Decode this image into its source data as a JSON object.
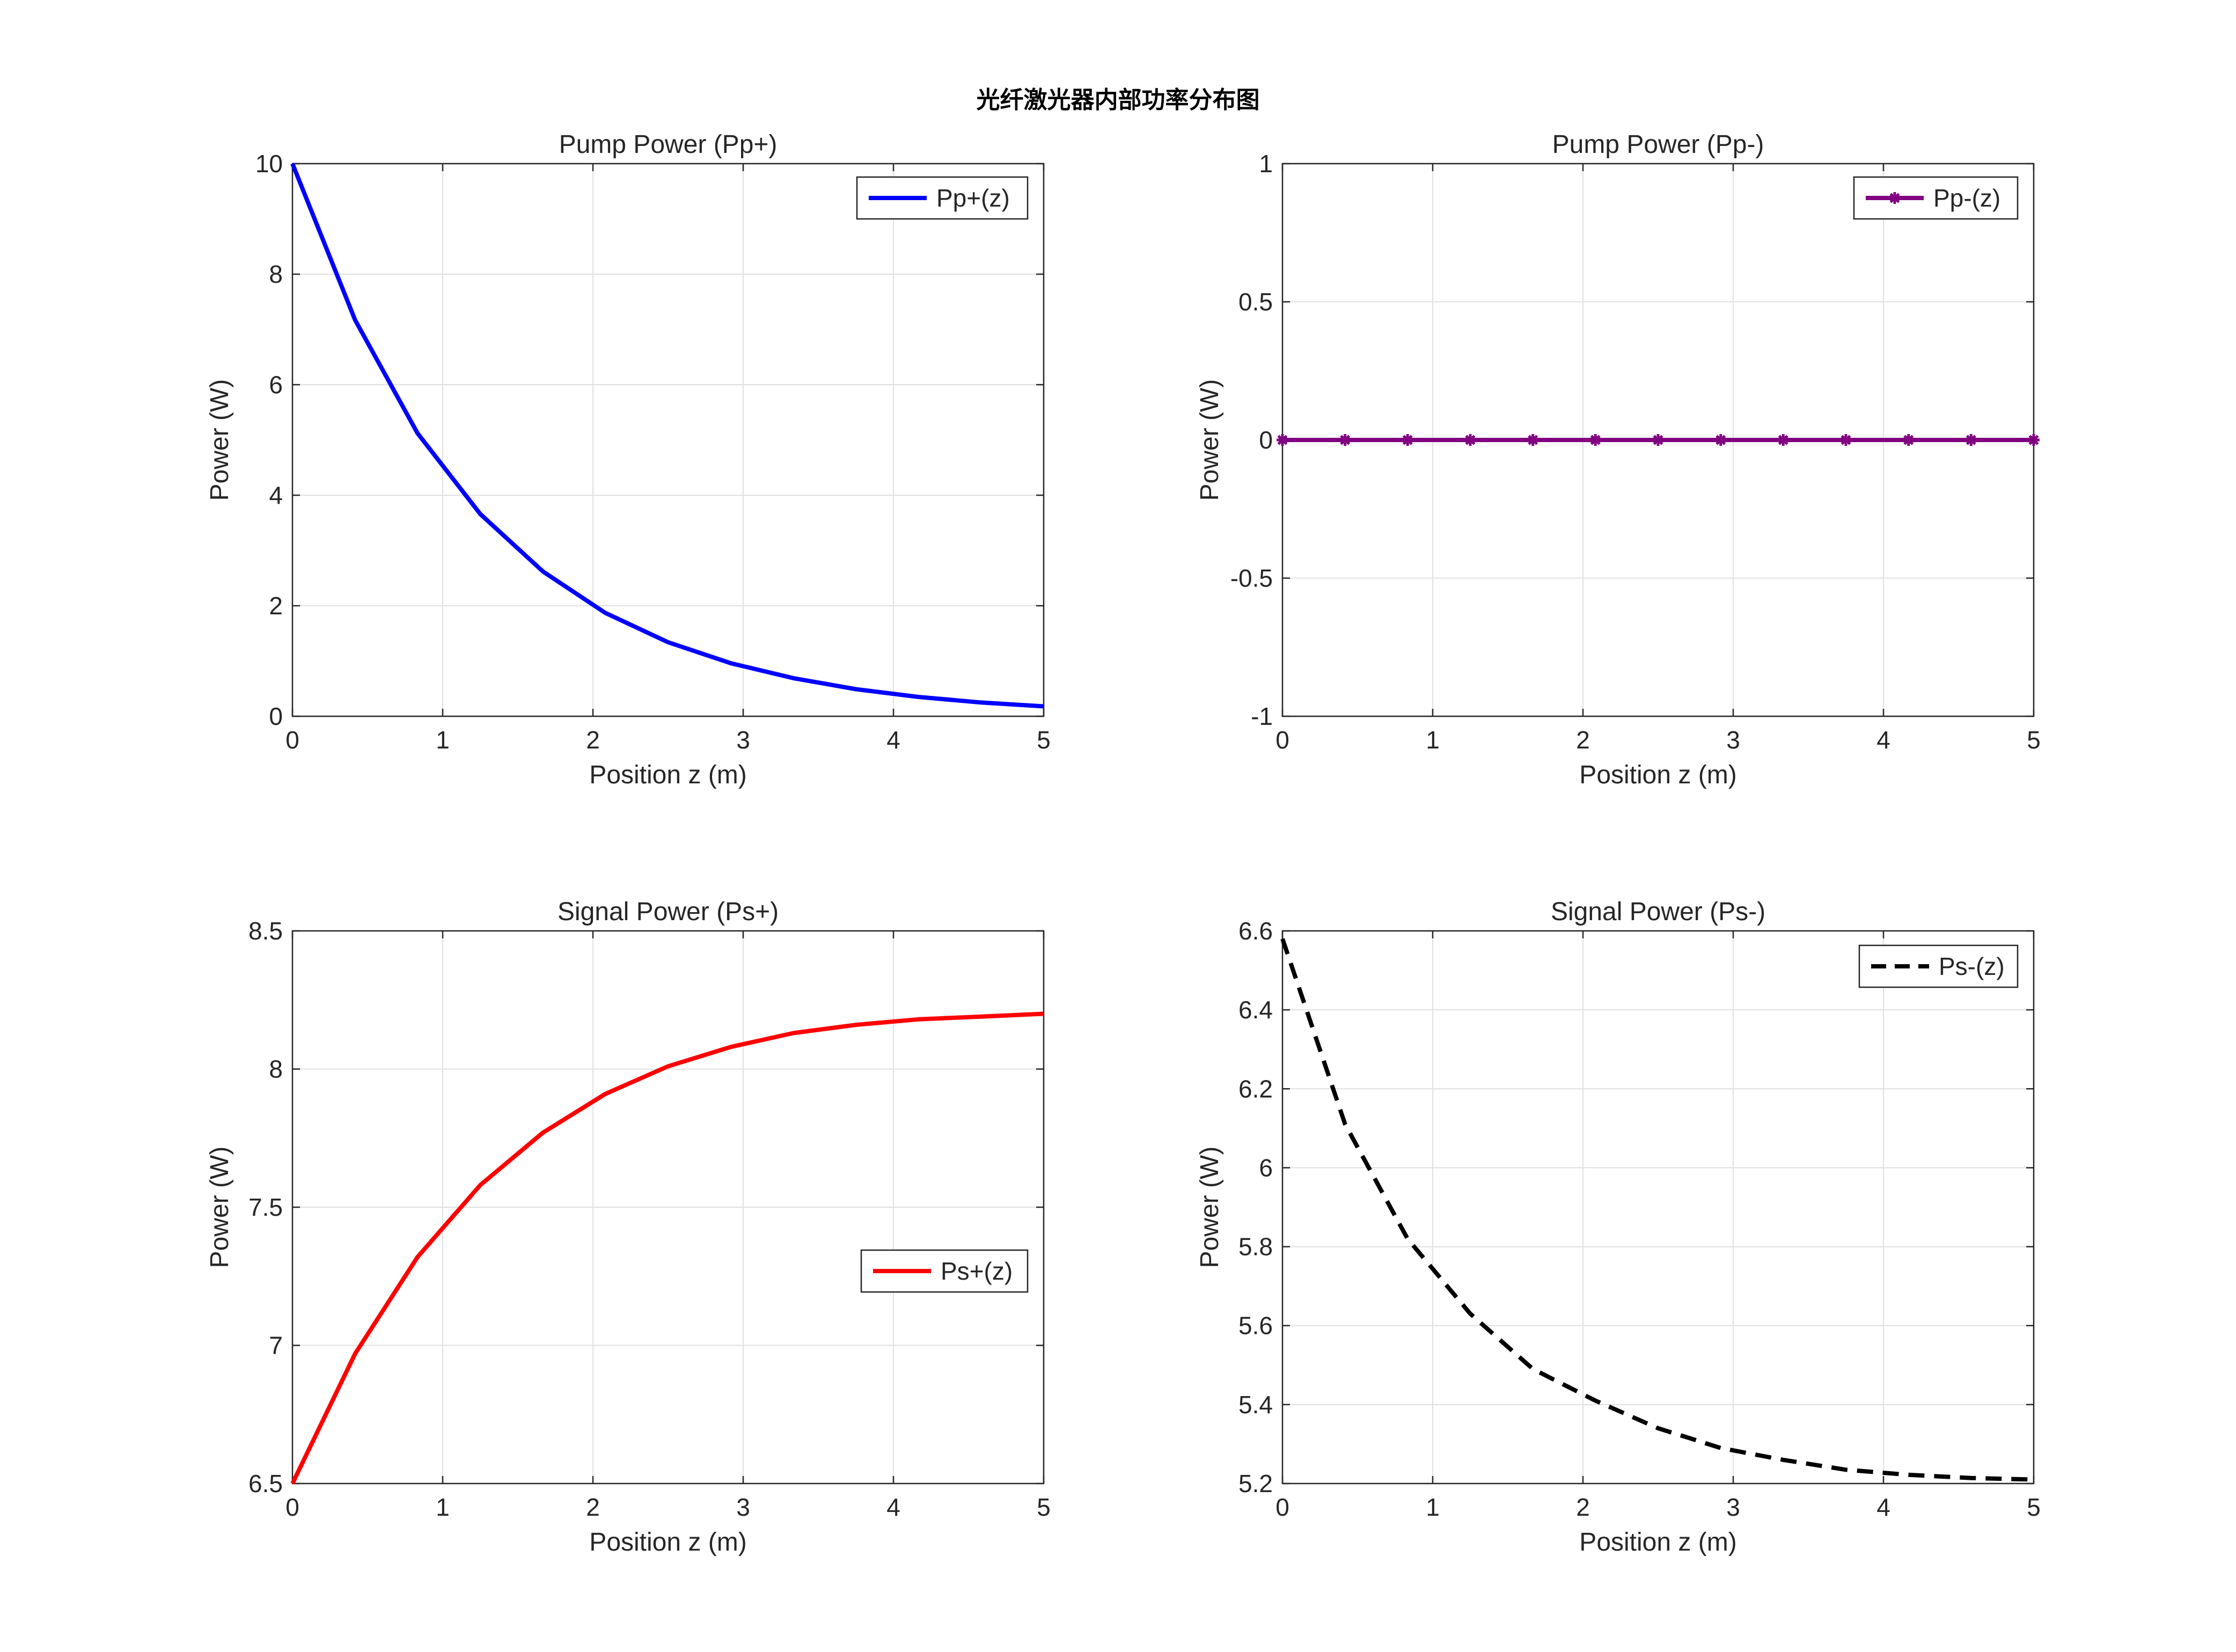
{
  "figure": {
    "title": "光纤激光器内部功率分布图"
  },
  "chart_data": [
    {
      "type": "line",
      "title": "Pump Power (Pp+)",
      "xlabel": "Position z (m)",
      "ylabel": "Power (W)",
      "xlim": [
        0,
        5
      ],
      "ylim": [
        0,
        10
      ],
      "xticks": [
        0,
        1,
        2,
        3,
        4,
        5
      ],
      "xtick_labels": [
        "0",
        "1",
        "2",
        "3",
        "4",
        "5"
      ],
      "yticks": [
        0,
        2,
        4,
        6,
        8,
        10
      ],
      "ytick_labels": [
        "0",
        "2",
        "4",
        "6",
        "8",
        "10"
      ],
      "grid": true,
      "legend_position": "top-right",
      "series": [
        {
          "name": "Pp+(z)",
          "color": "#0000ff",
          "style": "solid",
          "marker": "none",
          "x": [
            0,
            0.417,
            0.833,
            1.25,
            1.667,
            2.083,
            2.5,
            2.917,
            3.333,
            3.75,
            4.167,
            4.583,
            5
          ],
          "y": [
            10.0,
            7.17,
            5.12,
            3.66,
            2.62,
            1.87,
            1.34,
            0.96,
            0.69,
            0.49,
            0.35,
            0.25,
            0.18
          ]
        }
      ]
    },
    {
      "type": "line",
      "title": "Pump Power (Pp-)",
      "xlabel": "Position z (m)",
      "ylabel": "Power (W)",
      "xlim": [
        0,
        5
      ],
      "ylim": [
        -1,
        1
      ],
      "xticks": [
        0,
        1,
        2,
        3,
        4,
        5
      ],
      "xtick_labels": [
        "0",
        "1",
        "2",
        "3",
        "4",
        "5"
      ],
      "yticks": [
        -1,
        -0.5,
        0,
        0.5,
        1
      ],
      "ytick_labels": [
        "-1",
        "-0.5",
        "0",
        "0.5",
        "1"
      ],
      "grid": true,
      "legend_position": "top-right",
      "series": [
        {
          "name": "Pp-(z)",
          "color": "#800080",
          "style": "solid",
          "marker": "asterisk",
          "x": [
            0,
            0.417,
            0.833,
            1.25,
            1.667,
            2.083,
            2.5,
            2.917,
            3.333,
            3.75,
            4.167,
            4.583,
            5
          ],
          "y": [
            0,
            0,
            0,
            0,
            0,
            0,
            0,
            0,
            0,
            0,
            0,
            0,
            0
          ]
        }
      ]
    },
    {
      "type": "line",
      "title": "Signal Power (Ps+)",
      "xlabel": "Position z (m)",
      "ylabel": "Power (W)",
      "xlim": [
        0,
        5
      ],
      "ylim": [
        6.5,
        8.5
      ],
      "xticks": [
        0,
        1,
        2,
        3,
        4,
        5
      ],
      "xtick_labels": [
        "0",
        "1",
        "2",
        "3",
        "4",
        "5"
      ],
      "yticks": [
        6.5,
        7,
        7.5,
        8,
        8.5
      ],
      "ytick_labels": [
        "6.5",
        "7",
        "7.5",
        "8",
        "8.5"
      ],
      "grid": true,
      "legend_position": "center-right",
      "series": [
        {
          "name": "Ps+(z)",
          "color": "#ff0000",
          "style": "solid",
          "marker": "none",
          "x": [
            0,
            0.417,
            0.833,
            1.25,
            1.667,
            2.083,
            2.5,
            2.917,
            3.333,
            3.75,
            4.167,
            4.583,
            5
          ],
          "y": [
            6.5,
            6.97,
            7.32,
            7.58,
            7.77,
            7.91,
            8.01,
            8.08,
            8.13,
            8.16,
            8.18,
            8.19,
            8.2
          ]
        }
      ]
    },
    {
      "type": "line",
      "title": "Signal Power (Ps-)",
      "xlabel": "Position z (m)",
      "ylabel": "Power (W)",
      "xlim": [
        0,
        5
      ],
      "ylim": [
        5.2,
        6.6
      ],
      "xticks": [
        0,
        1,
        2,
        3,
        4,
        5
      ],
      "xtick_labels": [
        "0",
        "1",
        "2",
        "3",
        "4",
        "5"
      ],
      "yticks": [
        5.2,
        5.4,
        5.6,
        5.8,
        6,
        6.2,
        6.4,
        6.6
      ],
      "ytick_labels": [
        "5.2",
        "5.4",
        "5.6",
        "5.8",
        "6",
        "6.2",
        "6.4",
        "6.6"
      ],
      "grid": true,
      "legend_position": "top-right",
      "series": [
        {
          "name": "Ps-(z)",
          "color": "#000000",
          "style": "dashed",
          "marker": "none",
          "x": [
            0,
            0.417,
            0.833,
            1.25,
            1.667,
            2.083,
            2.5,
            2.917,
            3.333,
            3.75,
            4.167,
            4.583,
            5
          ],
          "y": [
            6.58,
            6.11,
            5.82,
            5.63,
            5.49,
            5.41,
            5.34,
            5.29,
            5.26,
            5.235,
            5.222,
            5.214,
            5.21
          ]
        }
      ]
    }
  ]
}
